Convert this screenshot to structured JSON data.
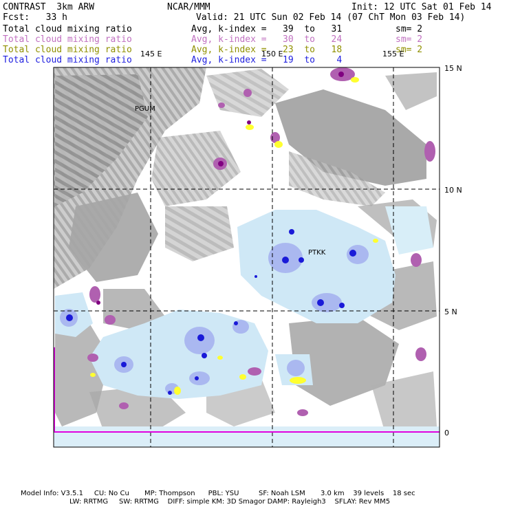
{
  "header": {
    "model": "CONTRAST  3km ARW",
    "org": "NCAR/MMM",
    "init": "Init: 12 UTC Sat 01 Feb 14",
    "fcst": "Fcst:   33 h",
    "valid": "Valid: 21 UTC Sun 02 Feb 14 (07 ChT Mon 03 Feb 14)"
  },
  "legend": [
    {
      "field": "Total cloud mixing ratio",
      "range": "Avg, k-index =   39  to   31",
      "sm": "sm= 2",
      "color": "#000000"
    },
    {
      "field": "Total cloud mixing ratio",
      "range": "Avg, k-index =   30  to   24",
      "sm": "sm= 2",
      "color": "#c070c0"
    },
    {
      "field": "Total cloud mixing ratio",
      "range": "Avg, k-index =   23  to   18",
      "sm": "sm= 2",
      "color": "#909000"
    },
    {
      "field": "Total cloud mixing ratio",
      "range": "Avg, k-index =   19  to    4",
      "sm": "",
      "color": "#2020e0"
    }
  ],
  "map": {
    "lon_labels": [
      "145 E",
      "150 E",
      "155 E"
    ],
    "lat_labels": [
      "15 N",
      "10 N",
      "5 N",
      "0"
    ],
    "stations": [
      {
        "id": "PGUM"
      },
      {
        "id": "PTKK"
      }
    ],
    "colors": {
      "upper_cloud_gray": "#a8a8a8",
      "mid_cloud_purple": "#b060b0",
      "dark_purple": "#800080",
      "low_cloud_yellow": "#ffff30",
      "shallow_cloud_lightblue": "#cfe8f6",
      "deep_cloud_blue": "#9aa8ee",
      "core_blue": "#1a1ad8",
      "equator_magenta": "#e000e0"
    }
  },
  "footer": {
    "line1": "Model Info: V3.5.1     CU: No Cu       MP: Thompson      PBL: YSU         SF: Noah LSM       3.0 km    39 levels    18 sec",
    "line2": "LW: RRTMG     SW: RRTMG    DIFF: simple KM: 3D Smagor DAMP: Rayleigh3    SFLAY: Rev MM5"
  }
}
